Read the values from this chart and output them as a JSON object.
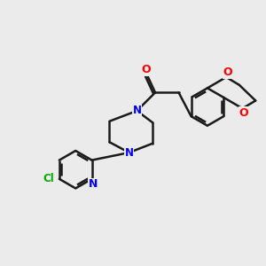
{
  "background_color": "#ebebeb",
  "bond_color": "#1a1a1a",
  "N_color": "#0000ff",
  "O_color": "#ff0000",
  "Cl_color": "#00aa00",
  "lw": 1.8,
  "figsize": [
    3.0,
    3.0
  ],
  "dpi": 100,
  "xlim": [
    0,
    10
  ],
  "ylim": [
    0,
    10
  ]
}
